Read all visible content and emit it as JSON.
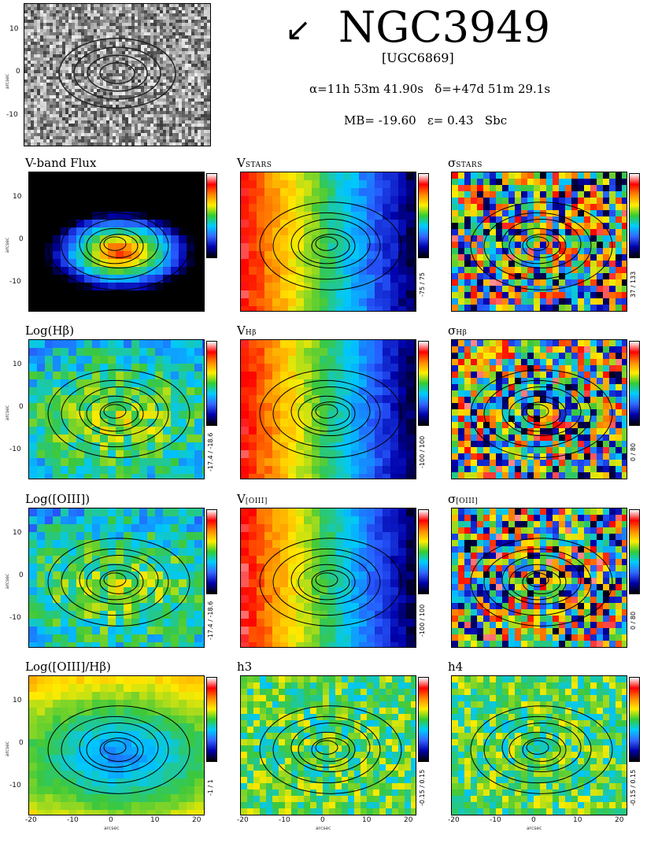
{
  "header": {
    "galaxy_name": "NGC3949",
    "ugc_name": "[UGC6869]",
    "ra_line": "α=11h 53m 41.90s   δ=+47d 51m 29.1s",
    "props_line": "MB= -19.60   ε= 0.43   Sbc",
    "arrow_glyph": "↙"
  },
  "axes": {
    "y_ticks": [
      "10",
      "0",
      "-10"
    ],
    "x_ticks": [
      "-20",
      "-10",
      "0",
      "10",
      "20"
    ],
    "unit_label": "arcsec"
  },
  "panels": [
    {
      "title": "V-band Flux",
      "range": "",
      "scheme": "flux"
    },
    {
      "title": "V",
      "title_sub": "STARS",
      "range": "-75 / 75",
      "scheme": "velocity"
    },
    {
      "title": "σ",
      "title_sub": "STARS",
      "range": "37 / 133",
      "scheme": "dispersion"
    },
    {
      "title": "Log(Hβ)",
      "range": "-17.4 / -18.6",
      "scheme": "emission"
    },
    {
      "title": "V",
      "title_sub": "Hβ",
      "range": "-100 / 100",
      "scheme": "velocity"
    },
    {
      "title": "σ",
      "title_sub": "Hβ",
      "range": "0 / 80",
      "scheme": "dispersion"
    },
    {
      "title": "Log([OIII])",
      "range": "-17.4 / -18.6",
      "scheme": "emission"
    },
    {
      "title": "V",
      "title_sub": "[OIII]",
      "range": "-100 / 100",
      "scheme": "velocity"
    },
    {
      "title": "σ",
      "title_sub": "[OIII]",
      "range": "0 / 80",
      "scheme": "dispersion"
    },
    {
      "title": "Log([OIII]/Hβ)",
      "range": "-1 / 1",
      "scheme": "ratio"
    },
    {
      "title": "h3",
      "range": "-0.15 / 0.15",
      "scheme": "moment"
    },
    {
      "title": "h4",
      "range": "-0.15 / 0.15",
      "scheme": "moment"
    }
  ],
  "colors": {
    "colorbar_stops": [
      "#ffffff",
      "#ff0000",
      "#ff8800",
      "#ffee00",
      "#33cc33",
      "#00ccff",
      "#3366ff",
      "#0000aa",
      "#000000"
    ]
  }
}
